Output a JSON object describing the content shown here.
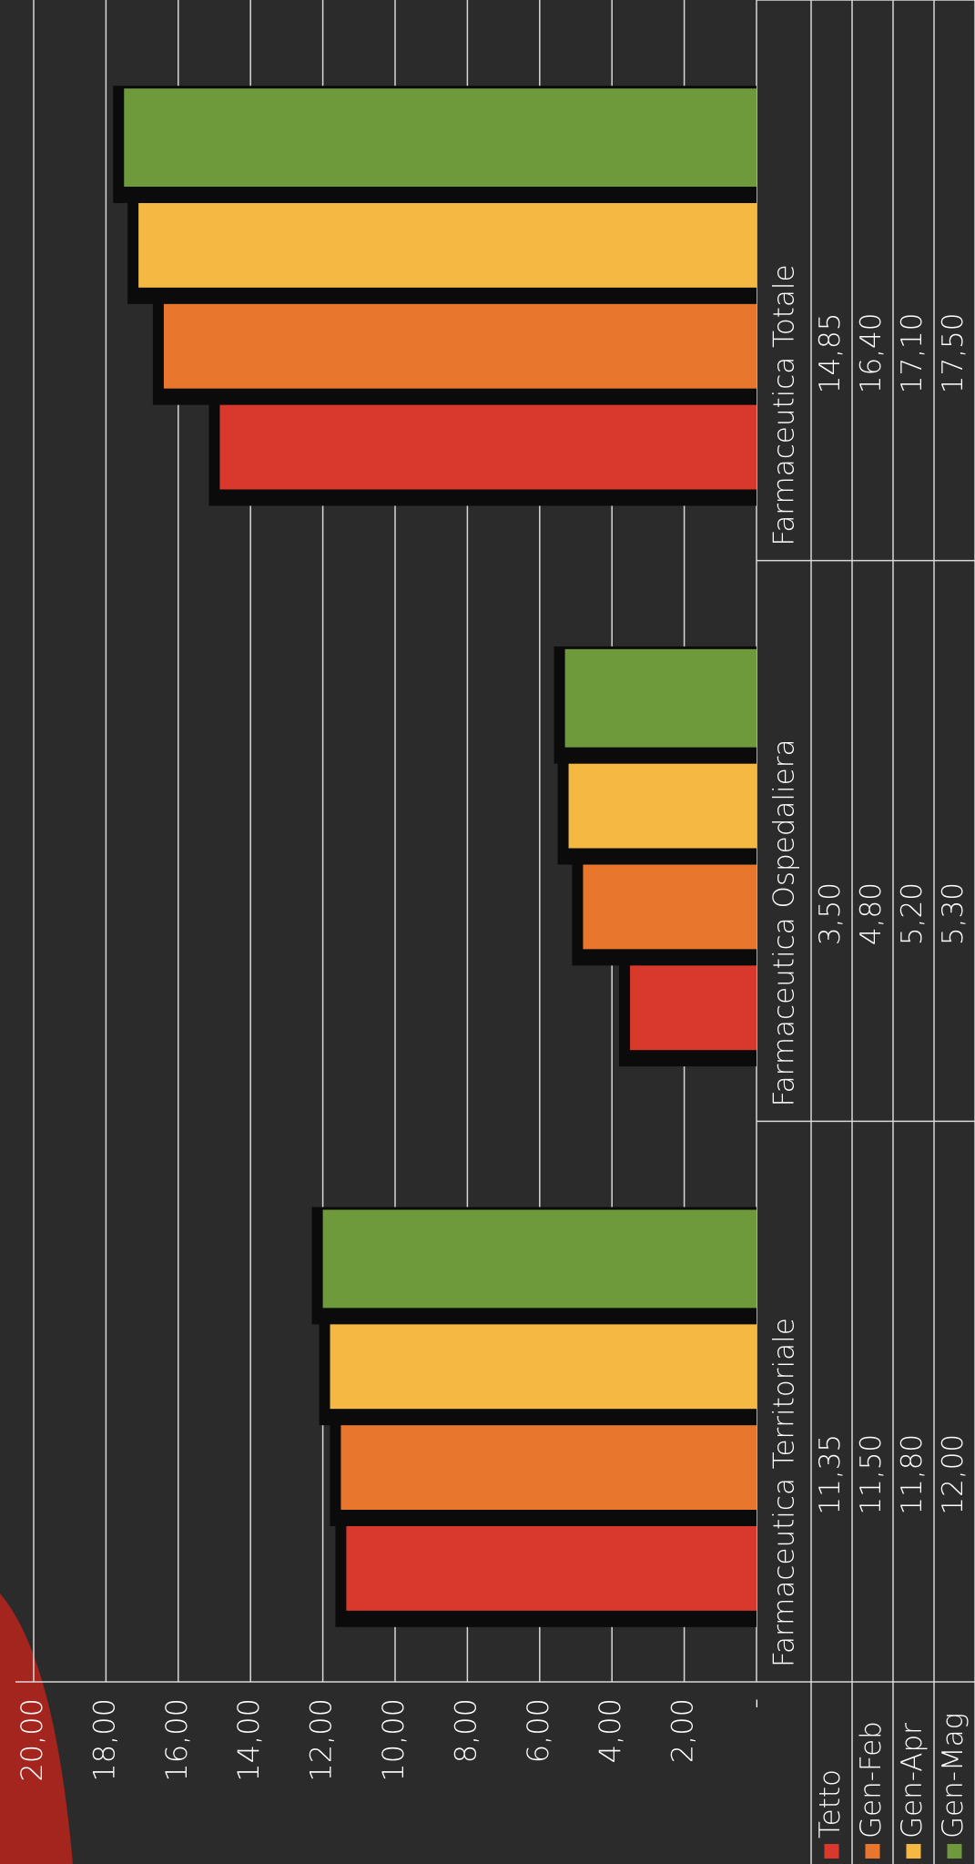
{
  "chart_data": {
    "type": "bar",
    "categories": [
      "Farmaceutica Territoriale",
      "Farmaceutica Ospedaliera",
      "Farmaceutica Totale"
    ],
    "series": [
      {
        "name": "Tetto",
        "color": "#d9392c",
        "values": [
          11.35,
          3.5,
          14.85
        ],
        "value_labels": [
          "11,35",
          "3,50",
          "14,85"
        ]
      },
      {
        "name": "Gen-Feb",
        "color": "#e8772d",
        "values": [
          11.5,
          4.8,
          16.4
        ],
        "value_labels": [
          "11,50",
          "4,80",
          "16,40"
        ]
      },
      {
        "name": "Gen-Apr",
        "color": "#f4b843",
        "values": [
          11.8,
          5.2,
          17.1
        ],
        "value_labels": [
          "11,80",
          "5,20",
          "17,10"
        ]
      },
      {
        "name": "Gen-Mag",
        "color": "#6e9a3c",
        "values": [
          12.0,
          5.3,
          17.5
        ],
        "value_labels": [
          "12,00",
          "5,30",
          "17,50"
        ]
      }
    ],
    "ylim": [
      0,
      20
    ],
    "yticks": [
      {
        "value": 0,
        "label": "-"
      },
      {
        "value": 2,
        "label": "2,00"
      },
      {
        "value": 4,
        "label": "4,00"
      },
      {
        "value": 6,
        "label": "6,00"
      },
      {
        "value": 8,
        "label": "8,00"
      },
      {
        "value": 10,
        "label": "10,00"
      },
      {
        "value": 12,
        "label": "12,00"
      },
      {
        "value": 14,
        "label": "14,00"
      },
      {
        "value": 16,
        "label": "16,00"
      },
      {
        "value": 18,
        "label": "18,00"
      },
      {
        "value": 20,
        "label": "20,00"
      }
    ],
    "grid": true
  }
}
